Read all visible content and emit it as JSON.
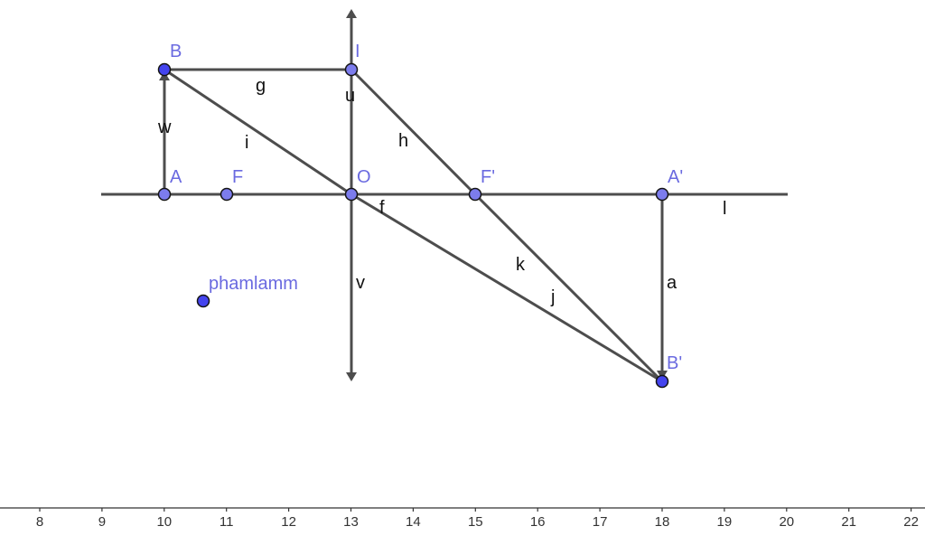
{
  "colors": {
    "line": "#4d4d4d",
    "point_fill_primary": "#4444ee",
    "point_fill_light": "#7c7ced",
    "point_stroke": "#141414",
    "point_label": "#6a6ae0",
    "text": "#111111"
  },
  "points": {
    "B": "B",
    "I": "I",
    "A": "A",
    "F": "F",
    "O": "O",
    "F_prime": "F'",
    "A_prime": "A'",
    "B_prime": "B'",
    "phamlamm": "phamlamm"
  },
  "segments": {
    "g": "g",
    "u": "u",
    "w": "w",
    "i": "i",
    "h": "h",
    "f": "f",
    "l": "l",
    "k": "k",
    "j": "j",
    "v": "v",
    "a": "a"
  },
  "axis": {
    "ticks": [
      "8",
      "9",
      "10",
      "11",
      "12",
      "13",
      "14",
      "15",
      "16",
      "17",
      "18",
      "19",
      "20",
      "21",
      "22"
    ]
  }
}
